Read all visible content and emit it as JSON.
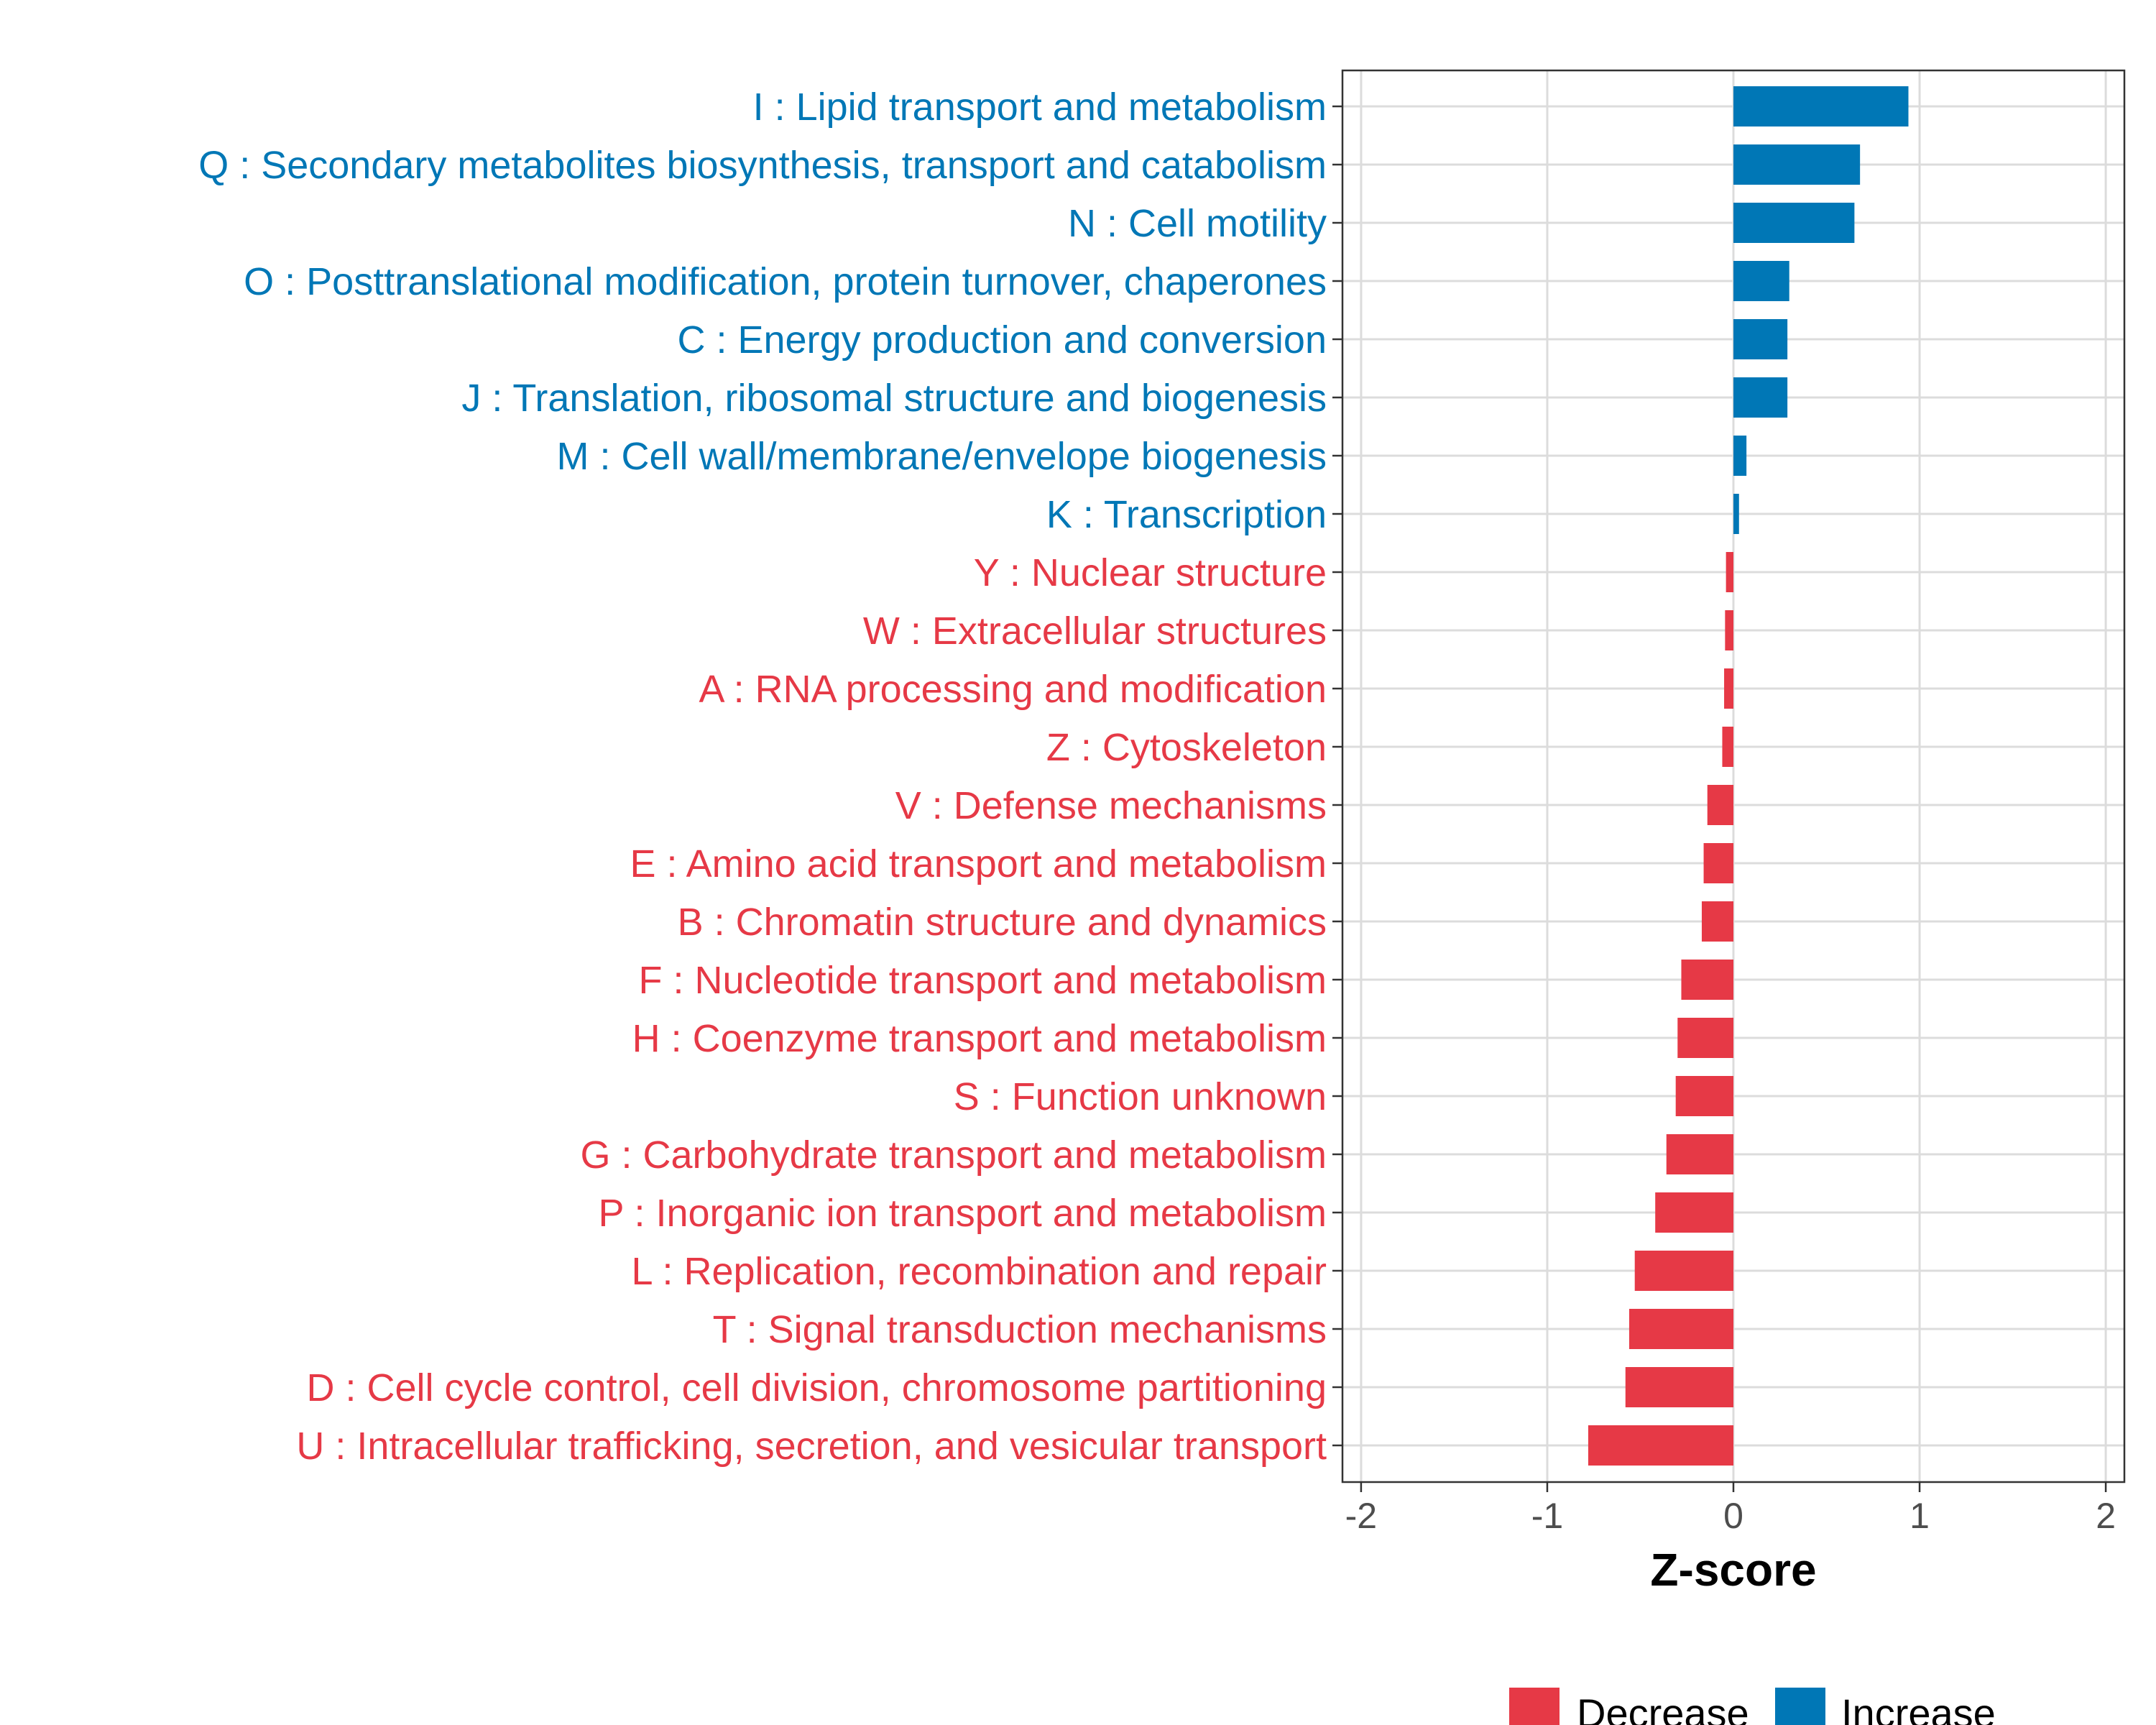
{
  "chart_data": {
    "type": "bar",
    "orientation": "horizontal",
    "title": "",
    "xlabel": "Z-score",
    "ylabel": "",
    "xlim": [
      -2.1,
      2.1
    ],
    "xticks": [
      -2,
      -1,
      0,
      1,
      2
    ],
    "xtick_labels": [
      "-2",
      "-1",
      "0",
      "1",
      "2"
    ],
    "grid": true,
    "legend": {
      "placement": "bottom",
      "entries": [
        {
          "name": "Decrease",
          "color": "#E63946"
        },
        {
          "name": "Increase",
          "color": "#0077B6"
        }
      ]
    },
    "categories": [
      "I : Lipid transport and metabolism",
      "Q : Secondary metabolites biosynthesis, transport and catabolism",
      "N : Cell motility",
      "O : Posttranslational modification, protein turnover, chaperones",
      "C : Energy production and conversion",
      "J : Translation, ribosomal structure and biogenesis",
      "M : Cell wall/membrane/envelope biogenesis",
      "K : Transcription",
      "Y : Nuclear structure",
      "W : Extracellular structures",
      "A : RNA processing and modification",
      "Z : Cytoskeleton",
      "V : Defense mechanisms",
      "E : Amino acid transport and metabolism",
      "B : Chromatin structure and dynamics",
      "F : Nucleotide transport and metabolism",
      "H : Coenzyme transport and metabolism",
      "S : Function unknown",
      "G : Carbohydrate transport and metabolism",
      "P : Inorganic ion transport and metabolism",
      "L : Replication, recombination and repair",
      "T : Signal transduction mechanisms",
      "D : Cell cycle control, cell division, chromosome partitioning",
      "U : Intracellular trafficking, secretion, and vesicular transport"
    ],
    "values": [
      0.94,
      0.68,
      0.65,
      0.3,
      0.29,
      0.29,
      0.07,
      0.03,
      -0.04,
      -0.045,
      -0.05,
      -0.06,
      -0.14,
      -0.16,
      -0.17,
      -0.28,
      -0.3,
      -0.31,
      -0.36,
      -0.42,
      -0.53,
      -0.56,
      -0.58,
      -0.78
    ],
    "groups": [
      "Increase",
      "Increase",
      "Increase",
      "Increase",
      "Increase",
      "Increase",
      "Increase",
      "Increase",
      "Decrease",
      "Decrease",
      "Decrease",
      "Decrease",
      "Decrease",
      "Decrease",
      "Decrease",
      "Decrease",
      "Decrease",
      "Decrease",
      "Decrease",
      "Decrease",
      "Decrease",
      "Decrease",
      "Decrease",
      "Decrease"
    ]
  }
}
